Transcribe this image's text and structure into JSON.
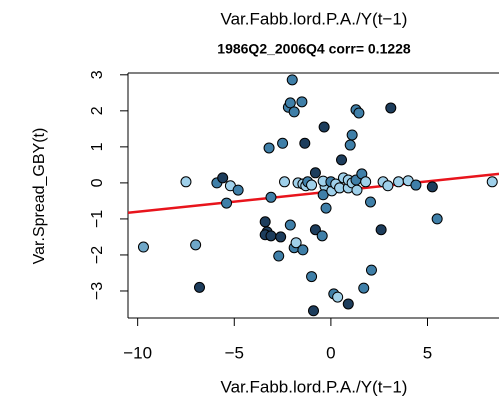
{
  "chart_data": {
    "type": "scatter",
    "title": "Var.Fabb.lord.P.A./Y(t−1)",
    "subtitle": "1986Q2_2006Q4 corr= 0.1228",
    "x_label": "Var.Fabb.lord.P.A./Y(t−1)",
    "y_label": "Var.Spread_GBY(t)",
    "xlim": [
      -10.5,
      8.7
    ],
    "ylim": [
      -3.75,
      3.05
    ],
    "xticks": [
      {
        "value": -10,
        "label": "−10"
      },
      {
        "value": -5,
        "label": "−5"
      },
      0,
      5
    ],
    "yticks": [
      {
        "value": -3,
        "label": "−3"
      },
      {
        "value": -2,
        "label": "−2"
      },
      {
        "value": -1,
        "label": "−1"
      },
      0,
      1,
      2,
      3
    ],
    "x": [
      -9.7,
      -7.5,
      -7.0,
      -6.8,
      -5.9,
      -5.6,
      -5.2,
      -4.8,
      -5.4,
      -3.4,
      -3.3,
      -3.4,
      -3.1,
      -2.7,
      -2.6,
      -3.2,
      -2.5,
      -3.1,
      -2.4,
      -2.0,
      -2.2,
      -2.1,
      -1.9,
      -1.5,
      -1.9,
      -1.8,
      -1.45,
      -2.1,
      -1.7,
      -1.45,
      -1.3,
      -1.2,
      -1.0,
      -1.35,
      -0.8,
      -0.8,
      -1.0,
      -0.9,
      -0.45,
      -0.35,
      -0.3,
      -0.4,
      -0.25,
      -0.4,
      0.05,
      0,
      0.15,
      0.35,
      0.25,
      0.45,
      0.55,
      0.65,
      0.9,
      1.1,
      1.0,
      0.9,
      1.1,
      1.3,
      0.9,
      1.3,
      1.45,
      1.6,
      1.35,
      1.8,
      2.05,
      1.7,
      2.1,
      2.6,
      2.7,
      2.95,
      3.1,
      3.5,
      4.0,
      4.4,
      5.25,
      5.5,
      8.35
    ],
    "y": [
      -1.78,
      0.03,
      -1.72,
      -2.9,
      0,
      0.14,
      -0.08,
      -0.2,
      -0.56,
      -1.08,
      -1.36,
      -1.44,
      -1.47,
      -2.03,
      -1.5,
      0.97,
      1.1,
      -0.4,
      0.03,
      2.86,
      2.1,
      2.22,
      1.97,
      2.25,
      -1.8,
      -1.66,
      -1.86,
      -1.17,
      0,
      -0.03,
      -0.08,
      0.03,
      -0.06,
      1.1,
      0.28,
      -1.3,
      -2.6,
      -3.55,
      -1.47,
      1.55,
      -0.1,
      0.05,
      -0.7,
      -0.33,
      -0.22,
      0.03,
      -3.08,
      -3.17,
      -0.03,
      -0.14,
      0.64,
      0.14,
      -0.14,
      1.33,
      1.05,
      0.08,
      0,
      0.08,
      -3.36,
      2.03,
      1.94,
      0.25,
      -0.2,
      0.03,
      -0.53,
      -2.92,
      -2.42,
      -1.3,
      0.03,
      -0.08,
      2.08,
      0.03,
      0.06,
      -0.06,
      -0.11,
      -1.0,
      0.03
    ],
    "colors": [
      "#6fa7c8",
      "#9fd0ea",
      "#6fa7c8",
      "#1d3d5c",
      "#3f7fa8",
      "#1d3d5c",
      "#9fd0ea",
      "#3f7fa8",
      "#3f7fa8",
      "#1d3d5c",
      "#1d3d5c",
      "#1d3d5c",
      "#1d3d5c",
      "#3f7fa8",
      "#1d3d5c",
      "#3f7fa8",
      "#3f7fa8",
      "#3f7fa8",
      "#9fd0ea",
      "#3f7fa8",
      "#3f7fa8",
      "#3f7fa8",
      "#3f7fa8",
      "#3f7fa8",
      "#3f7fa8",
      "#9fd0ea",
      "#3f7fa8",
      "#3f7fa8",
      "#9fd0ea",
      "#9fd0ea",
      "#9fd0ea",
      "#3f7fa8",
      "#9fd0ea",
      "#1d3d5c",
      "#1d3d5c",
      "#1d3d5c",
      "#3f7fa8",
      "#1d3d5c",
      "#3f7fa8",
      "#1d3d5c",
      "#9fd0ea",
      "#9fd0ea",
      "#3f7fa8",
      "#3f7fa8",
      "#9fd0ea",
      "#3f7fa8",
      "#3f7fa8",
      "#9fd0ea",
      "#9fd0ea",
      "#9fd0ea",
      "#1d3d5c",
      "#9fd0ea",
      "#9fd0ea",
      "#3f7fa8",
      "#3f7fa8",
      "#9fd0ea",
      "#9fd0ea",
      "#3f7fa8",
      "#1d3d5c",
      "#3f7fa8",
      "#3f7fa8",
      "#3f7fa8",
      "#9fd0ea",
      "#9fd0ea",
      "#3f7fa8",
      "#3f7fa8",
      "#3f7fa8",
      "#1d3d5c",
      "#9fd0ea",
      "#9fd0ea",
      "#1d3d5c",
      "#9fd0ea",
      "#9fd0ea",
      "#3f7fa8",
      "#1d3d5c",
      "#3f7fa8",
      "#9fd0ea"
    ],
    "fit_line": {
      "x": [
        -10.5,
        8.7
      ],
      "y": [
        -0.83,
        0.25
      ],
      "color": "#e8141c"
    }
  }
}
